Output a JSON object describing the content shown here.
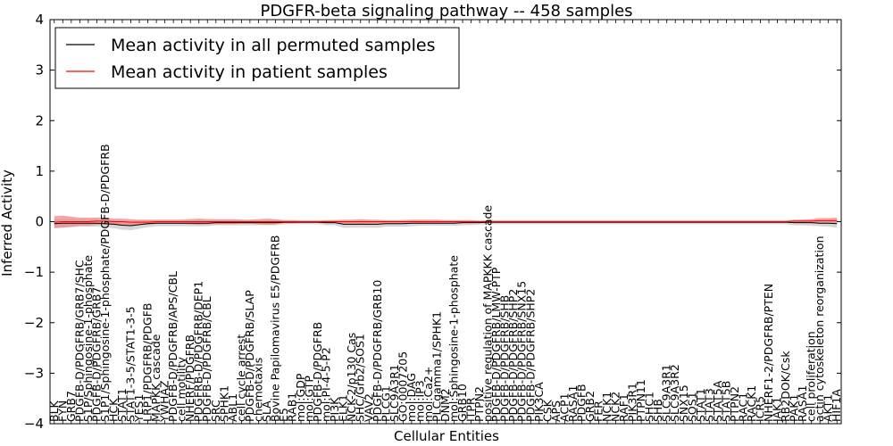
{
  "chart_data": {
    "type": "line",
    "title": "PDGFR-beta signaling pathway -- 458 samples",
    "xlabel": "Cellular Entities",
    "ylabel": "Inferred Activity",
    "ylim": [
      -4,
      4
    ],
    "yticks": [
      "−4",
      "−3",
      "−2",
      "−1",
      "0",
      "1",
      "2",
      "3",
      "4"
    ],
    "legend": {
      "position": "top-left",
      "entries": [
        {
          "label": "Mean activity in all permuted samples",
          "color": "#000000"
        },
        {
          "label": "Mean activity in patient samples",
          "color": "#ff0000"
        }
      ]
    },
    "categories": [
      "BLK",
      "FYN",
      "GRB7",
      "PDGFB-D/PDGFRB/GRB7/SHC",
      "S1P/Sphingosine-1-phosphate",
      "PDGFB-D/PDGFRB/GRB7",
      "S1P1/Sphingosine-1-phosphate/PDGFB-D/PDGFRB",
      "HCK",
      "STAT1",
      "STAT1-3-5/STAT1-3-5",
      "YES1",
      "LRP1/PDGFRB/PDGFB",
      "MAPKK cascade",
      "YWHAZ",
      "PDGFB-D/PDGFRB/APS/CBL",
      "cell motility",
      "NHERF/PDGFRB",
      "PDGFRB-D/PDGFRB/DEP1",
      "PDGFB-D/PDGFRB/CBL",
      "SRC",
      "SPHK1",
      "ABL1",
      "cell cycle arrest",
      "PDGFB-D/PDGFRB/SLAP",
      "chemotaxis",
      "SLA",
      "Bovine Papilomavirus E5/PDGFRB",
      "E5",
      "RAB1",
      "mol:GDP",
      "mol:GTP",
      "PDGFB-D/PDGFRB",
      "mol:PI-4-5-P2",
      "PI3K",
      "ELK1",
      "NCK-2/p130 Cas",
      "SHC/Grb2/SOS1",
      "VAV2",
      "PDGFB-D/PDGFRB/GRB10",
      "PLCG1",
      "SLC9A3R1",
      "GO:0007205",
      "mol:DAG",
      "mol:IP3",
      "mol:Ca2+",
      "PLCgamma1/SPHK1",
      "DNM2",
      "mol:Sphingosine-1-phosphate",
      "GRB10",
      "ITPR",
      "PTPN2",
      "positive regulation of MAPKKK cascade",
      "PDGFB-D/PDGFRB/LMW-PTP",
      "PDGFB-D/PDGFRB/SHB",
      "PDGFB-D/PDGFRB/SHP2",
      "PDGFB-D/PDGFRB/SNX15",
      "PDGFB-D/PDGFRB/SHP2",
      "PIK3CA",
      "CSK",
      "APS",
      "ACP1",
      "RASA1",
      "PDGFB",
      "GRB2",
      "FER",
      "NCK1",
      "NCK2",
      "RAF1",
      "PIK3R1",
      "PTPN11",
      "SHC1",
      "SHB",
      "SLC9A3R1",
      "SLC9A3R2",
      "SNX15",
      "SOS1",
      "STAT1",
      "STAT3",
      "STAT5A",
      "STAT5B",
      "PTPN2",
      "RAC1",
      "RACK1",
      "ICR5",
      "NHERF1-2/PDGFRB/PTEN",
      "JAK1",
      "RB2DOK/Csk",
      "PAK1",
      "RASA1",
      "cell proliferation",
      "actin cytoskeleton reorganization",
      "AKT1",
      "HIF1A"
    ],
    "series": [
      {
        "name": "Mean activity in all permuted samples",
        "color": "#000000",
        "band_color": "#c8c8c8",
        "values": [
          -0.04,
          -0.03,
          -0.03,
          -0.03,
          -0.03,
          -0.03,
          -0.04,
          -0.05,
          -0.07,
          -0.08,
          -0.06,
          -0.04,
          -0.03,
          -0.03,
          -0.03,
          -0.03,
          -0.03,
          -0.03,
          -0.03,
          -0.02,
          -0.02,
          -0.02,
          -0.02,
          -0.02,
          -0.02,
          -0.02,
          -0.02,
          -0.01,
          -0.01,
          -0.01,
          -0.01,
          -0.01,
          -0.02,
          -0.02,
          -0.05,
          -0.05,
          -0.05,
          -0.05,
          -0.05,
          -0.04,
          -0.04,
          -0.04,
          -0.03,
          -0.03,
          -0.03,
          -0.03,
          -0.03,
          -0.03,
          -0.02,
          -0.02,
          -0.02,
          -0.01,
          -0.01,
          -0.01,
          -0.01,
          -0.01,
          -0.01,
          -0.01,
          -0.01,
          -0.01,
          -0.01,
          -0.01,
          -0.01,
          -0.01,
          -0.01,
          -0.01,
          -0.01,
          -0.01,
          -0.01,
          -0.01,
          -0.01,
          -0.01,
          -0.01,
          -0.01,
          -0.01,
          -0.01,
          -0.01,
          -0.01,
          -0.01,
          -0.01,
          -0.01,
          -0.01,
          -0.01,
          -0.01,
          -0.01,
          -0.01,
          -0.01,
          -0.02,
          -0.02,
          -0.02,
          -0.03,
          -0.03,
          -0.04
        ],
        "band": [
          0.08,
          0.08,
          0.08,
          0.07,
          0.07,
          0.07,
          0.07,
          0.08,
          0.09,
          0.09,
          0.08,
          0.07,
          0.06,
          0.06,
          0.06,
          0.06,
          0.06,
          0.06,
          0.06,
          0.05,
          0.05,
          0.05,
          0.05,
          0.05,
          0.05,
          0.05,
          0.05,
          0.04,
          0.04,
          0.04,
          0.04,
          0.04,
          0.05,
          0.05,
          0.07,
          0.07,
          0.07,
          0.07,
          0.07,
          0.06,
          0.06,
          0.06,
          0.06,
          0.05,
          0.05,
          0.05,
          0.05,
          0.05,
          0.05,
          0.05,
          0.04,
          0.04,
          0.04,
          0.04,
          0.04,
          0.04,
          0.04,
          0.04,
          0.04,
          0.04,
          0.04,
          0.04,
          0.04,
          0.04,
          0.04,
          0.04,
          0.04,
          0.04,
          0.04,
          0.04,
          0.04,
          0.04,
          0.04,
          0.04,
          0.04,
          0.04,
          0.04,
          0.04,
          0.04,
          0.04,
          0.04,
          0.04,
          0.04,
          0.04,
          0.04,
          0.04,
          0.04,
          0.05,
          0.05,
          0.06,
          0.06,
          0.07,
          0.08
        ]
      },
      {
        "name": "Mean activity in patient samples",
        "color": "#ff0000",
        "band_color": "#f08080",
        "values": [
          -0.01,
          0.0,
          0.0,
          0.0,
          0.0,
          0.01,
          0.01,
          0.0,
          0.0,
          -0.01,
          -0.01,
          -0.01,
          0.0,
          0.0,
          0.0,
          0.0,
          0.0,
          0.0,
          0.0,
          0.0,
          0.0,
          0.0,
          0.0,
          0.0,
          0.0,
          0.0,
          0.0,
          0.0,
          0.0,
          0.0,
          0.0,
          0.0,
          0.0,
          0.0,
          0.0,
          0.0,
          0.0,
          0.0,
          0.0,
          0.0,
          0.0,
          0.0,
          0.0,
          0.0,
          0.0,
          0.0,
          0.0,
          0.0,
          0.0,
          0.0,
          0.0,
          0.0,
          0.0,
          0.0,
          0.0,
          0.0,
          0.0,
          0.0,
          0.0,
          0.0,
          0.0,
          0.0,
          0.0,
          0.0,
          0.0,
          0.0,
          0.0,
          0.0,
          0.0,
          0.0,
          0.0,
          0.0,
          0.0,
          0.0,
          0.0,
          0.0,
          0.0,
          0.0,
          0.0,
          0.0,
          0.0,
          0.0,
          0.0,
          0.0,
          0.0,
          0.0,
          0.0,
          0.01,
          0.01,
          0.01,
          0.02,
          0.02,
          0.02
        ],
        "band": [
          0.12,
          0.12,
          0.1,
          0.08,
          0.08,
          0.07,
          0.07,
          0.06,
          0.06,
          0.06,
          0.05,
          0.05,
          0.04,
          0.04,
          0.04,
          0.04,
          0.05,
          0.06,
          0.05,
          0.05,
          0.05,
          0.05,
          0.04,
          0.04,
          0.05,
          0.06,
          0.05,
          0.03,
          0.03,
          0.02,
          0.02,
          0.02,
          0.03,
          0.03,
          0.04,
          0.04,
          0.05,
          0.04,
          0.04,
          0.03,
          0.03,
          0.03,
          0.04,
          0.04,
          0.04,
          0.04,
          0.03,
          0.03,
          0.03,
          0.03,
          0.02,
          0.02,
          0.02,
          0.02,
          0.02,
          0.02,
          0.02,
          0.02,
          0.02,
          0.02,
          0.02,
          0.02,
          0.02,
          0.02,
          0.02,
          0.02,
          0.02,
          0.02,
          0.02,
          0.02,
          0.02,
          0.02,
          0.02,
          0.02,
          0.02,
          0.02,
          0.02,
          0.02,
          0.02,
          0.02,
          0.02,
          0.02,
          0.02,
          0.02,
          0.02,
          0.02,
          0.02,
          0.03,
          0.03,
          0.04,
          0.05,
          0.05,
          0.06
        ]
      }
    ]
  }
}
